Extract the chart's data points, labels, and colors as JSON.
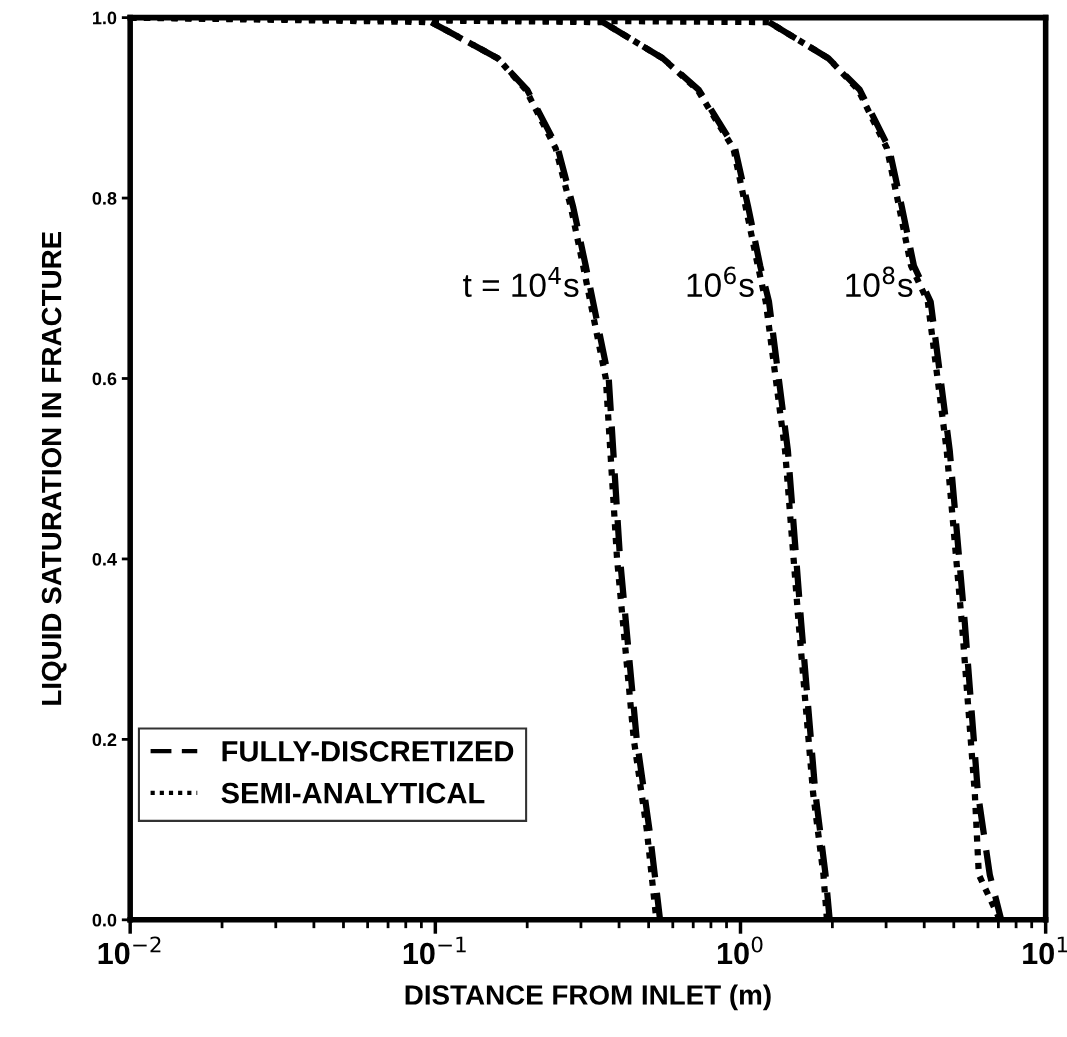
{
  "chart_data": {
    "type": "line",
    "xlabel": "DISTANCE FROM INLET (m)",
    "ylabel": "LIQUID SATURATION IN FRACTURE",
    "log": "x",
    "xlim": [
      0.01,
      10
    ],
    "ylim": [
      0,
      1
    ],
    "xticks": [
      {
        "value": 0.01,
        "label": "10$^{−2}$"
      },
      {
        "value": 0.1,
        "label": "10$^{−1}$"
      },
      {
        "value": 1,
        "label": "10$^{0}$"
      },
      {
        "value": 10,
        "label": "10$^{1}$"
      }
    ],
    "yticks": [
      {
        "value": 0,
        "label": "0.0"
      },
      {
        "value": 0.2,
        "label": "0.2"
      },
      {
        "value": 0.4,
        "label": "0.4"
      },
      {
        "value": 0.6,
        "label": "0.6"
      },
      {
        "value": 0.8,
        "label": "0.8"
      },
      {
        "value": 1,
        "label": "1.0"
      }
    ],
    "grid": false,
    "legend": "bottom left",
    "marker": "none",
    "series": [
      {
        "name": "FULLY-DISCRETIZED",
        "color": "#000000",
        "line_style": "dashed",
        "x": [
          0.097,
          0.16,
          0.2,
          0.252,
          0.283,
          0.311,
          0.37,
          0.403,
          0.457,
          0.503,
          0.545
        ],
        "values": [
          0.995,
          0.955,
          0.92,
          0.855,
          0.79,
          0.725,
          0.6,
          0.4,
          0.2,
          0.1,
          0.0
        ]
      },
      {
        "name": "SEMI-ANALYTICAL",
        "color": "#000000",
        "line_style": "dotted",
        "x": [
          0.01,
          0.097,
          0.16,
          0.198,
          0.248,
          0.278,
          0.305,
          0.362,
          0.394,
          0.447,
          0.493,
          0.53
        ],
        "values": [
          1.0,
          0.995,
          0.955,
          0.92,
          0.855,
          0.79,
          0.725,
          0.6,
          0.4,
          0.2,
          0.1,
          0.0
        ]
      },
      {
        "color": "#000000",
        "line_style": "dashed",
        "x": [
          0.354,
          0.556,
          0.73,
          0.96,
          1.06,
          1.16,
          1.24,
          1.43,
          1.58,
          1.76,
          1.9,
          1.96
        ],
        "values": [
          0.995,
          0.955,
          0.92,
          0.855,
          0.79,
          0.725,
          0.685,
          0.52,
          0.33,
          0.14,
          0.05,
          0.0
        ]
      },
      {
        "color": "#000000",
        "line_style": "dotted",
        "x": [
          0.01,
          0.354,
          0.556,
          0.723,
          0.948,
          1.04,
          1.14,
          1.21,
          1.4,
          1.55,
          1.73,
          1.87,
          1.92
        ],
        "values": [
          1.0,
          0.995,
          0.955,
          0.92,
          0.855,
          0.79,
          0.725,
          0.685,
          0.52,
          0.33,
          0.14,
          0.05,
          0.0
        ]
      },
      {
        "color": "#000000",
        "line_style": "dashed",
        "x": [
          1.24,
          1.94,
          2.46,
          3.07,
          3.38,
          3.7,
          4.2,
          4.85,
          5.43,
          6.0,
          6.56,
          7.15
        ],
        "values": [
          0.995,
          0.955,
          0.92,
          0.855,
          0.79,
          0.725,
          0.685,
          0.52,
          0.33,
          0.14,
          0.05,
          0.0
        ]
      },
      {
        "color": "#000000",
        "line_style": "dotted",
        "x": [
          0.01,
          1.24,
          1.94,
          2.43,
          3.02,
          3.31,
          3.62,
          4.11,
          4.74,
          5.31,
          5.86,
          6.04,
          7.08
        ],
        "values": [
          1.0,
          0.995,
          0.955,
          0.92,
          0.855,
          0.79,
          0.725,
          0.685,
          0.52,
          0.33,
          0.14,
          0.05,
          0.0
        ]
      }
    ],
    "annotations": [
      "t = 10$^{4}$s",
      "10$^{6}$s",
      "10$^{8}$s"
    ]
  }
}
